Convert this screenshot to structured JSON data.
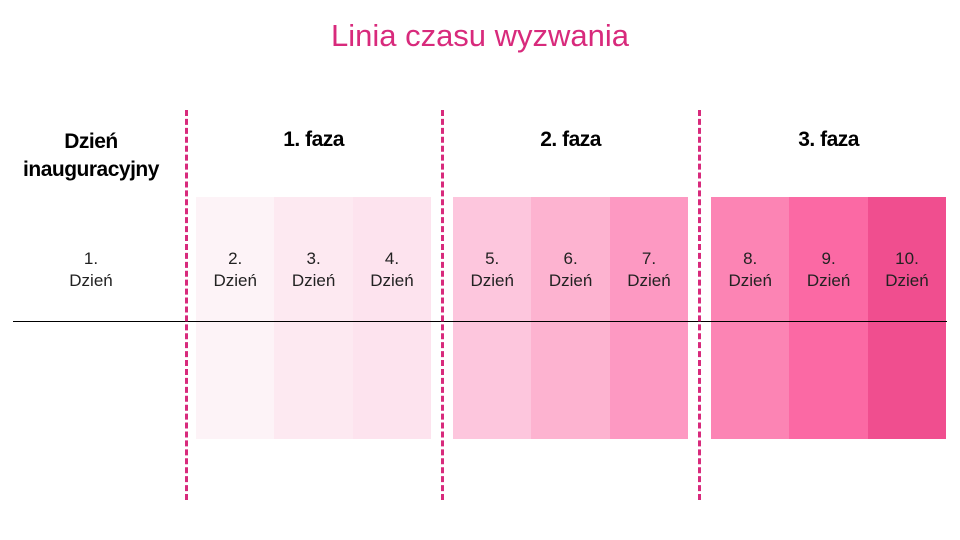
{
  "title": "Linia czasu wyzwania",
  "columns": [
    {
      "header": "Dzień inauguracyjny",
      "days": [
        {
          "number": "1.",
          "label": "Dzień"
        }
      ]
    },
    {
      "header": "1. faza",
      "days": [
        {
          "number": "2.",
          "label": "Dzień"
        },
        {
          "number": "3.",
          "label": "Dzień"
        },
        {
          "number": "4.",
          "label": "Dzień"
        }
      ]
    },
    {
      "header": "2. faza",
      "days": [
        {
          "number": "5.",
          "label": "Dzień"
        },
        {
          "number": "6.",
          "label": "Dzień"
        },
        {
          "number": "7.",
          "label": "Dzień"
        }
      ]
    },
    {
      "header": "3. faza",
      "days": [
        {
          "number": "8.",
          "label": "Dzień"
        },
        {
          "number": "9.",
          "label": "Dzień"
        },
        {
          "number": "10.",
          "label": "Dzień"
        }
      ]
    }
  ]
}
